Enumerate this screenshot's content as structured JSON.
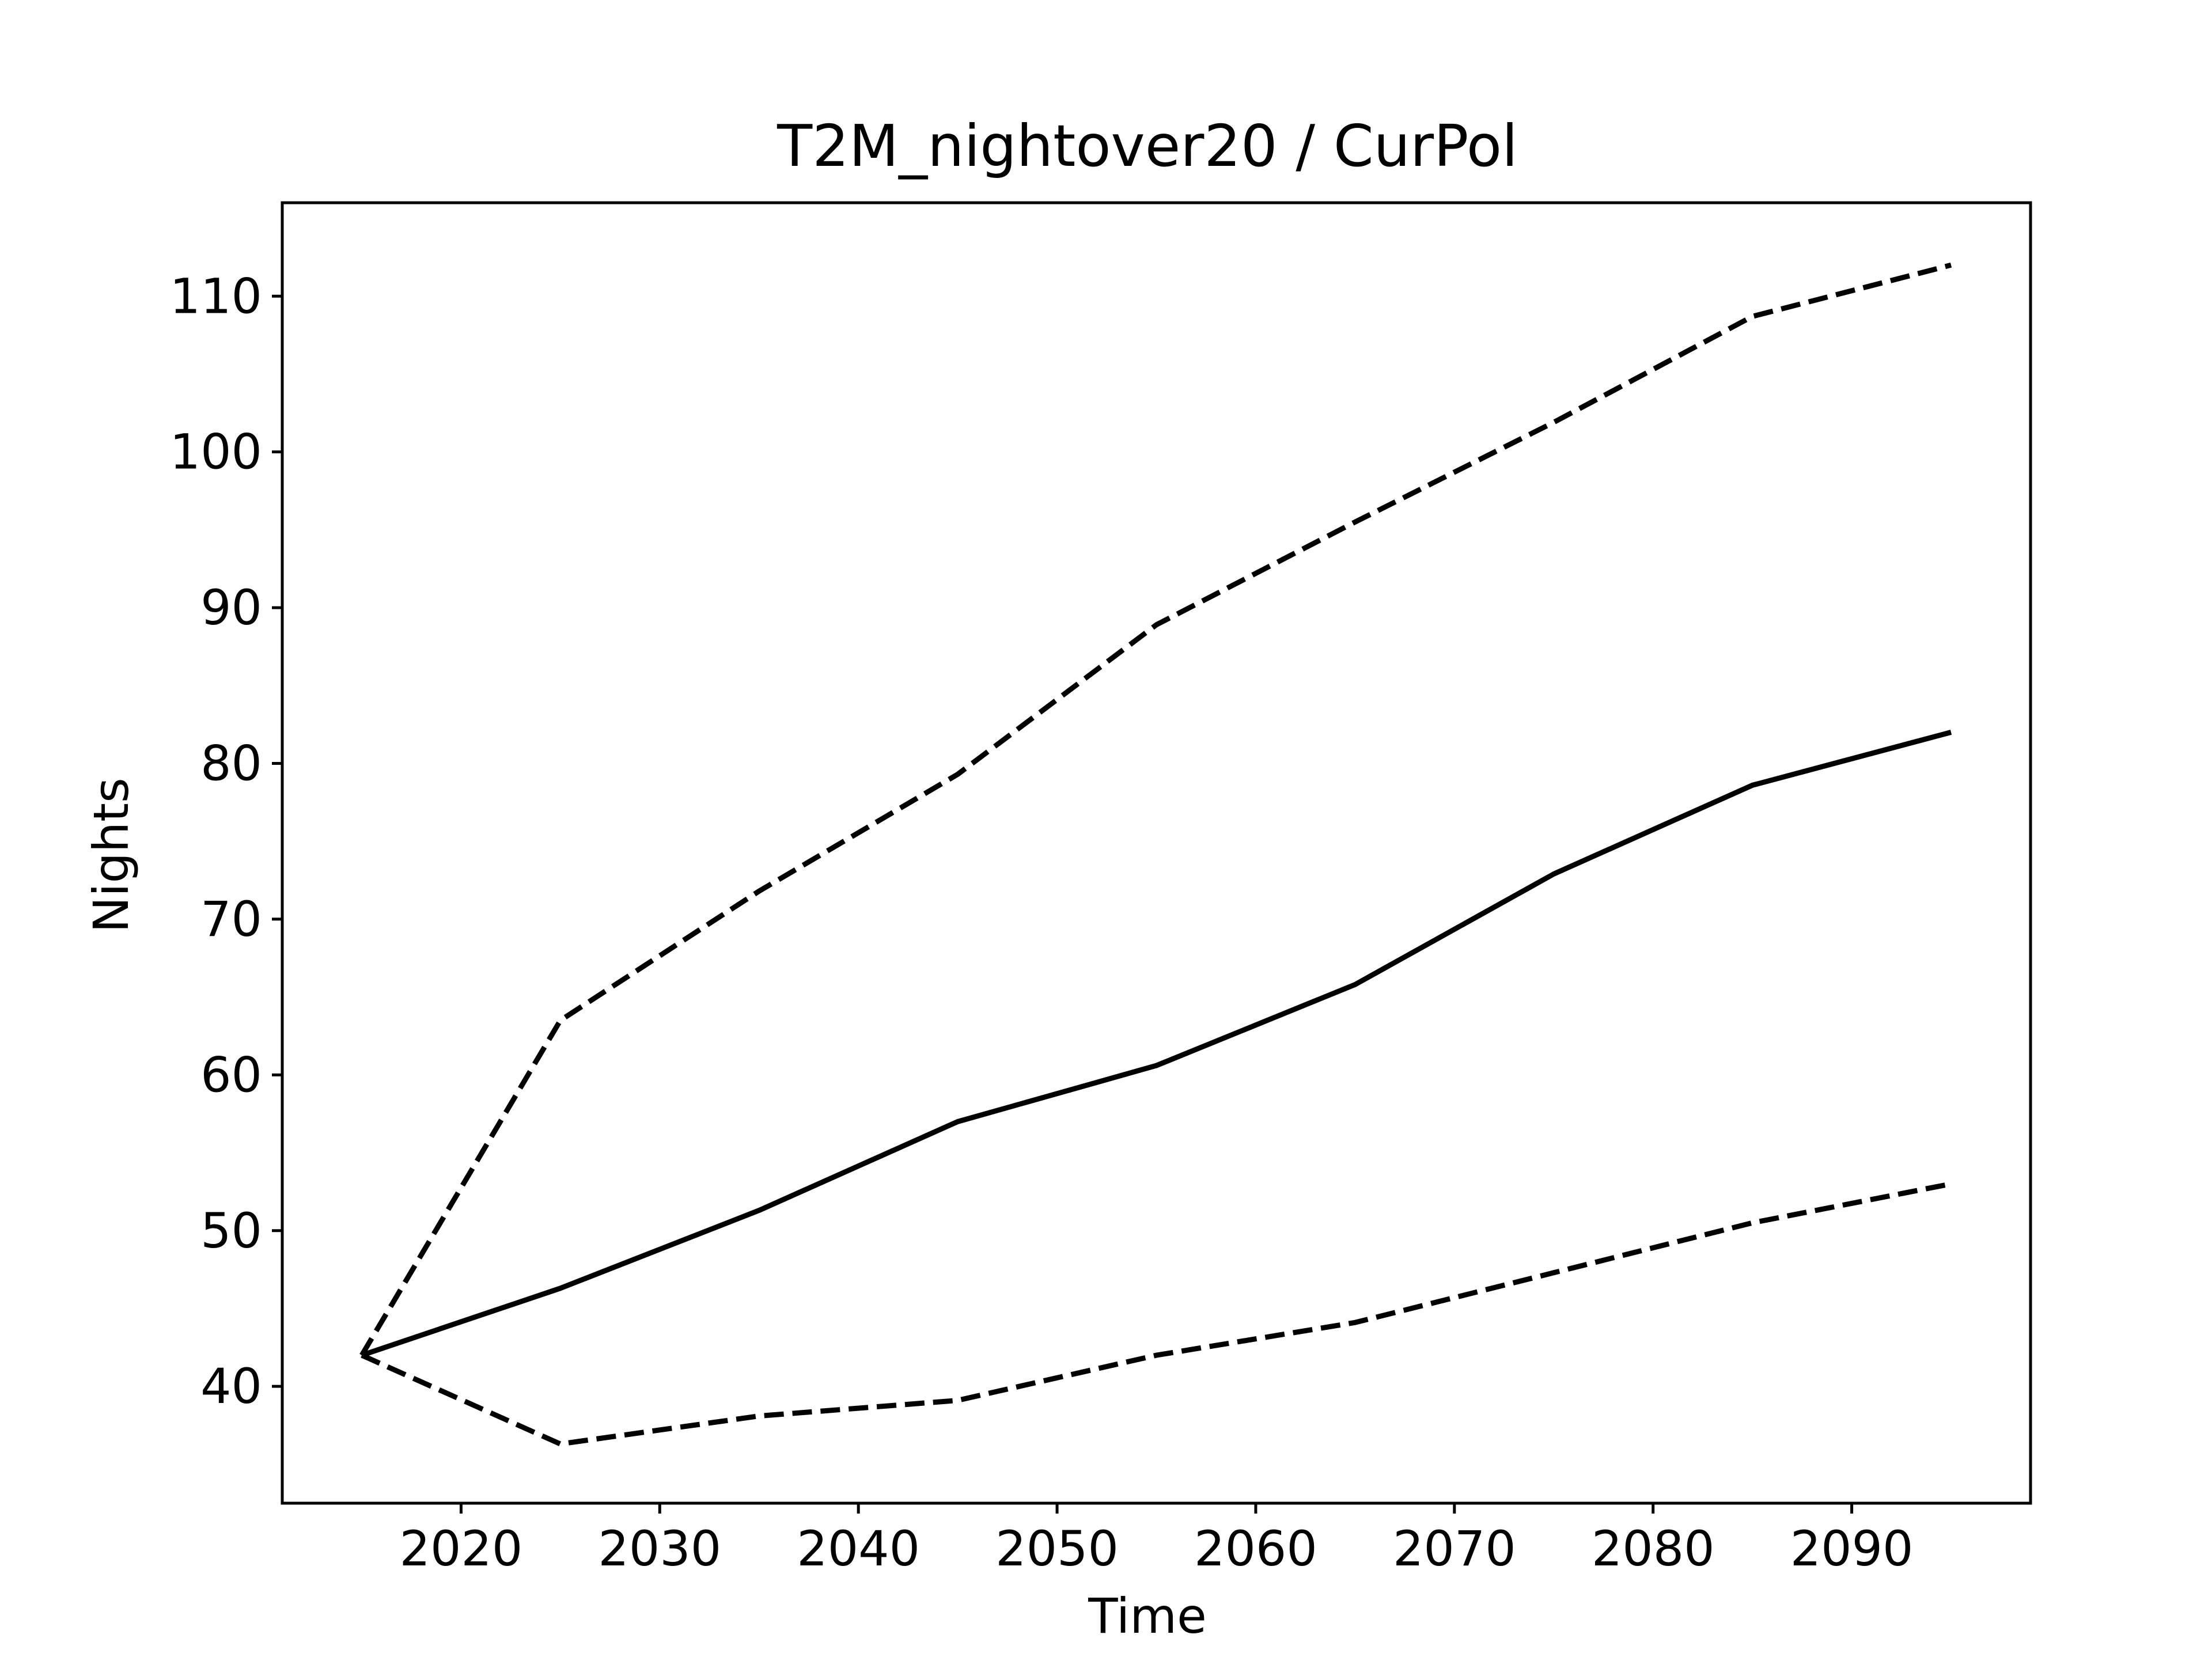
{
  "chart_data": {
    "type": "line",
    "title": "T2M_nightover20 / CurPol",
    "xlabel": "Time",
    "ylabel": "Nights",
    "xlim": [
      2011,
      2099
    ],
    "ylim": [
      32.5,
      116
    ],
    "xticks": [
      2020,
      2030,
      2040,
      2050,
      2060,
      2070,
      2080,
      2090
    ],
    "yticks": [
      40,
      50,
      60,
      70,
      80,
      90,
      100,
      110
    ],
    "grid": false,
    "legend": "none",
    "x": [
      2015,
      2025,
      2035,
      2045,
      2055,
      2065,
      2075,
      2085,
      2095
    ],
    "series": [
      {
        "style": "solid",
        "color": "#000000",
        "values": [
          42.0,
          46.3,
          51.3,
          57.0,
          60.6,
          65.8,
          72.9,
          78.6,
          82.0
        ]
      },
      {
        "style": "dashed",
        "color": "#000000",
        "values": [
          42.0,
          63.5,
          71.8,
          79.3,
          88.9,
          95.5,
          101.9,
          108.7,
          112.0
        ]
      },
      {
        "style": "dashed",
        "color": "#000000",
        "values": [
          42.0,
          36.3,
          38.1,
          39.1,
          42.0,
          44.1,
          47.3,
          50.5,
          53.0
        ]
      }
    ]
  }
}
